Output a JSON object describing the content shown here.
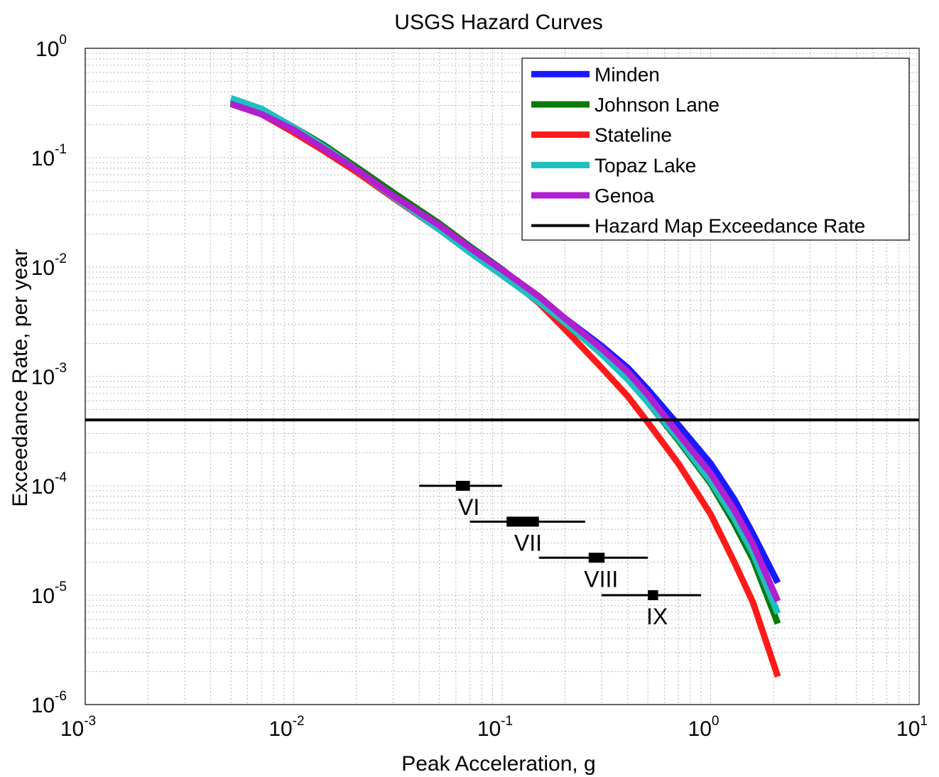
{
  "chart_data": {
    "type": "line",
    "title": "USGS Hazard Curves",
    "xlabel": "Peak Acceleration, g",
    "ylabel": "Exceedance Rate, per year",
    "x_scale": "log",
    "y_scale": "log",
    "xlim": [
      0.001,
      10
    ],
    "ylim": [
      1e-06,
      1
    ],
    "grid": true,
    "legend_position": "top-right",
    "x_ticks": [
      {
        "base": "10",
        "exp": "-3"
      },
      {
        "base": "10",
        "exp": "-2"
      },
      {
        "base": "10",
        "exp": "-1"
      },
      {
        "base": "10",
        "exp": "0"
      },
      {
        "base": "10",
        "exp": "1"
      }
    ],
    "y_ticks": [
      {
        "base": "10",
        "exp": "0"
      },
      {
        "base": "10",
        "exp": "-1"
      },
      {
        "base": "10",
        "exp": "-2"
      },
      {
        "base": "10",
        "exp": "-3"
      },
      {
        "base": "10",
        "exp": "-4"
      },
      {
        "base": "10",
        "exp": "-5"
      },
      {
        "base": "10",
        "exp": "-6"
      }
    ],
    "series": [
      {
        "name": "Minden",
        "color": "#1a1aff",
        "x": [
          0.005,
          0.007,
          0.01,
          0.014,
          0.02,
          0.03,
          0.05,
          0.07,
          0.1,
          0.15,
          0.2,
          0.3,
          0.4,
          0.5,
          0.7,
          1.0,
          1.3,
          1.6,
          2.1
        ],
        "y": [
          0.32,
          0.26,
          0.18,
          0.12,
          0.079,
          0.046,
          0.024,
          0.015,
          0.0094,
          0.0052,
          0.0034,
          0.0019,
          0.0012,
          0.00076,
          0.00036,
          0.00016,
          7.5e-05,
          3.6e-05,
          1.3e-05
        ]
      },
      {
        "name": "Johnson Lane",
        "color": "#0a7a0a",
        "x": [
          0.005,
          0.007,
          0.01,
          0.014,
          0.02,
          0.03,
          0.05,
          0.07,
          0.1,
          0.15,
          0.2,
          0.3,
          0.4,
          0.5,
          0.7,
          1.0,
          1.3,
          1.6,
          2.1
        ],
        "y": [
          0.34,
          0.27,
          0.19,
          0.13,
          0.082,
          0.048,
          0.025,
          0.0155,
          0.0095,
          0.0051,
          0.0032,
          0.0016,
          0.00095,
          0.00058,
          0.00026,
          0.000105,
          4.5e-05,
          2.1e-05,
          5.5e-06
        ]
      },
      {
        "name": "Stateline",
        "color": "#ff1a1a",
        "x": [
          0.005,
          0.007,
          0.01,
          0.014,
          0.02,
          0.03,
          0.05,
          0.07,
          0.1,
          0.15,
          0.2,
          0.3,
          0.4,
          0.5,
          0.7,
          1.0,
          1.3,
          1.6,
          2.1
        ],
        "y": [
          0.31,
          0.25,
          0.17,
          0.115,
          0.074,
          0.043,
          0.022,
          0.014,
          0.0088,
          0.0047,
          0.0027,
          0.0012,
          0.00066,
          0.00038,
          0.00016,
          5.5e-05,
          2e-05,
          8.5e-06,
          1.8e-06
        ]
      },
      {
        "name": "Topaz Lake",
        "color": "#1fbfbf",
        "x": [
          0.005,
          0.007,
          0.01,
          0.014,
          0.02,
          0.03,
          0.05,
          0.07,
          0.1,
          0.15,
          0.2,
          0.3,
          0.4,
          0.5,
          0.7,
          1.0,
          1.3,
          1.6,
          2.1
        ],
        "y": [
          0.35,
          0.28,
          0.19,
          0.125,
          0.078,
          0.044,
          0.022,
          0.0136,
          0.0084,
          0.0048,
          0.0031,
          0.0016,
          0.00094,
          0.00058,
          0.00027,
          0.00011,
          5e-05,
          2.4e-05,
          6.8e-06
        ]
      },
      {
        "name": "Genoa",
        "color": "#b01fd0",
        "x": [
          0.005,
          0.007,
          0.01,
          0.014,
          0.02,
          0.03,
          0.05,
          0.07,
          0.1,
          0.15,
          0.2,
          0.3,
          0.4,
          0.5,
          0.7,
          1.0,
          1.3,
          1.6,
          2.1
        ],
        "y": [
          0.31,
          0.25,
          0.18,
          0.12,
          0.078,
          0.045,
          0.024,
          0.015,
          0.0094,
          0.0054,
          0.0034,
          0.0018,
          0.0011,
          0.00068,
          0.0003,
          0.00013,
          6e-05,
          2.9e-05,
          8.8e-06
        ]
      },
      {
        "name": "Hazard Map Exceedance Rate",
        "color": "#000000",
        "x": [
          0.001,
          10
        ],
        "y": [
          0.0004,
          0.0004
        ]
      }
    ],
    "annotations": [
      {
        "label": "VI",
        "center": 0.065,
        "range": [
          0.04,
          0.1
        ],
        "box": [
          0.06,
          0.07
        ],
        "y": 0.0001
      },
      {
        "label": "VII",
        "center": 0.125,
        "range": [
          0.07,
          0.25
        ],
        "box": [
          0.105,
          0.15
        ],
        "y": 4.7e-05
      },
      {
        "label": "VIII",
        "center": 0.28,
        "range": [
          0.15,
          0.5
        ],
        "box": [
          0.26,
          0.31
        ],
        "y": 2.2e-05
      },
      {
        "label": "IX",
        "center": 0.52,
        "range": [
          0.3,
          0.9
        ],
        "box": [
          0.5,
          0.56
        ],
        "y": 1e-05
      }
    ]
  }
}
